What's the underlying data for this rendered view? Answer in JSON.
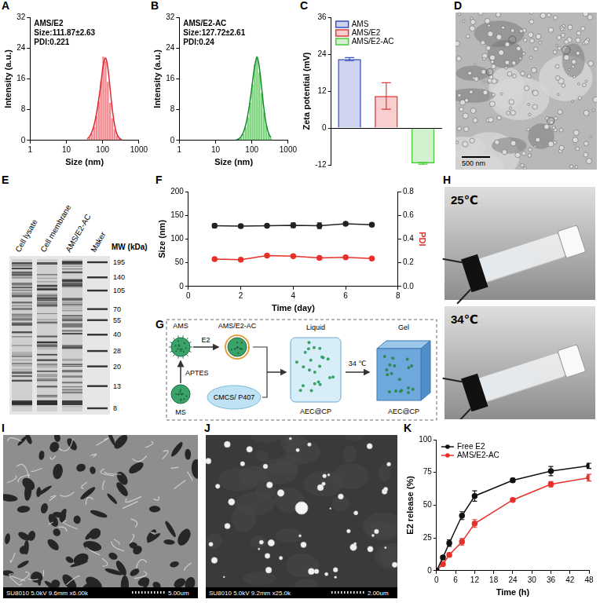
{
  "chart_data": [
    {
      "panel": "A",
      "type": "bar",
      "annotations": [
        "AMS/E2",
        "Size:111.87±2.63",
        "PDI:0.221"
      ],
      "x_label": "Size (nm)",
      "y_label": "Intensity (a.u.)",
      "log": "x",
      "grid": false,
      "xlim": [
        1,
        1000
      ],
      "xticks": [
        1,
        10,
        100,
        1000
      ],
      "ylim": [
        0,
        32
      ],
      "yticks": [
        0,
        8,
        16,
        24,
        32
      ],
      "x": [
        37.8,
        43.7,
        50.5,
        58.4,
        67.5,
        78.0,
        90.2,
        104.3,
        120.6,
        139.4,
        161.2,
        186.4,
        215.4,
        249.1,
        288.0,
        333.0
      ],
      "series": [
        {
          "type": "bar",
          "color": "#f28b92",
          "values": [
            0.3,
            0.8,
            1.8,
            3.6,
            6.3,
            10.2,
            15.4,
            21.8,
            20.6,
            15.2,
            9.8,
            5.7,
            2.9,
            1.3,
            0.5,
            0.2
          ]
        },
        {
          "type": "line",
          "color": "#e3262f",
          "values": [
            0.4,
            1.0,
            2.2,
            4.1,
            6.9,
            10.6,
            15.0,
            19.6,
            21.4,
            18.8,
            13.3,
            7.8,
            3.8,
            1.6,
            0.6,
            0.2
          ]
        }
      ]
    },
    {
      "panel": "B",
      "type": "bar",
      "annotations": [
        "AMS/E2-AC",
        "Size:127.72±2.61",
        "PDI:0.24"
      ],
      "x_label": "Size (nm)",
      "y_label": "Intensity (a.u.)",
      "log": "x",
      "grid": false,
      "xlim": [
        1,
        1000
      ],
      "xticks": [
        1,
        10,
        100,
        1000
      ],
      "ylim": [
        0,
        32
      ],
      "yticks": [
        0,
        8,
        16,
        24,
        32
      ],
      "x": [
        37.8,
        43.7,
        50.5,
        58.4,
        67.5,
        78.0,
        90.2,
        104.3,
        120.6,
        139.4,
        161.2,
        186.4,
        215.4,
        249.1,
        288.0,
        333.0
      ],
      "series": [
        {
          "type": "bar",
          "color": "#7bd67b",
          "values": [
            0.1,
            0.3,
            0.8,
            1.7,
            3.4,
            6.0,
            9.8,
            14.6,
            19.8,
            21.9,
            17.6,
            12.3,
            7.4,
            3.9,
            1.7,
            0.6
          ]
        },
        {
          "type": "line",
          "color": "#138a2b",
          "values": [
            0.2,
            0.4,
            1.0,
            2.1,
            4.0,
            6.8,
            10.6,
            15.2,
            19.4,
            21.6,
            18.9,
            13.6,
            8.2,
            4.2,
            1.9,
            0.7
          ]
        }
      ]
    },
    {
      "panel": "C",
      "type": "bar",
      "y_label": "Zeta potential (mV)",
      "grid": false,
      "legend": "upper left",
      "tick_labels": "y",
      "categories": [
        null,
        null,
        null
      ],
      "ylim": [
        -12,
        36
      ],
      "yticks": [
        -12,
        0,
        12,
        24,
        36
      ],
      "series": [
        {
          "name": "AMS",
          "color": "#3d4fc4",
          "values": [
            22.4,
            null,
            null
          ],
          "errors": [
            0.5,
            null,
            null
          ]
        },
        {
          "name": "AMS/E2",
          "color": "#e23a3a",
          "values": [
            null,
            10.4,
            null
          ],
          "errors": [
            null,
            4.3,
            null
          ]
        },
        {
          "name": "AMS/E2-AC",
          "color": "#4cc93c",
          "values": [
            null,
            null,
            -11.5
          ],
          "errors": [
            null,
            null,
            0.3
          ]
        }
      ]
    },
    {
      "panel": "F",
      "type": "line",
      "x_label": "Time (day)",
      "y_label": "Size (nm)",
      "y2_label": "PDI",
      "grid": false,
      "xlim": [
        0,
        8
      ],
      "xticks": [
        0,
        2,
        4,
        6,
        8
      ],
      "ylim": [
        0,
        200
      ],
      "yticks": [
        0,
        50,
        100,
        150,
        200
      ],
      "y2lim": [
        0,
        0.8
      ],
      "y2ticks": [
        {
          "value": 0,
          "label": "0.0"
        },
        0.2,
        0.4,
        0.6,
        0.8
      ],
      "x": [
        1,
        2,
        3,
        4,
        5,
        6,
        7
      ],
      "series": [
        {
          "color": "#222222",
          "marker": "circle",
          "values": [
            128,
            127,
            128,
            129,
            128,
            132,
            130
          ],
          "errors": [
            4,
            3,
            3,
            5,
            6,
            3,
            3
          ]
        },
        {
          "axis": "y2",
          "color": "#e8302a",
          "marker": "circle",
          "values": [
            0.23,
            0.226,
            0.26,
            0.255,
            0.24,
            0.245,
            0.235
          ]
        }
      ]
    },
    {
      "panel": "K",
      "type": "line",
      "x_label": "Time (h)",
      "y_label": "E2 release (%)",
      "grid": false,
      "legend": "upper left",
      "xlim": [
        0,
        48
      ],
      "xticks": [
        0,
        6,
        12,
        18,
        24,
        30,
        36,
        42,
        48
      ],
      "ylim": [
        0,
        100
      ],
      "yticks": [
        0,
        25,
        50,
        75,
        100
      ],
      "x": [
        0,
        2,
        4,
        8,
        12,
        24,
        36,
        48
      ],
      "series": [
        {
          "name": "Free E2",
          "color": "#111111",
          "marker": "circle",
          "values": [
            0,
            10,
            21,
            42,
            57,
            69,
            76,
            80
          ],
          "errors": [
            0,
            1.5,
            2.5,
            3,
            4,
            1.5,
            3.5,
            2
          ]
        },
        {
          "name": "AMS/E2-AC",
          "color": "#e8302a",
          "marker": "circle",
          "values": [
            0,
            5,
            12,
            22,
            36,
            54,
            66,
            71
          ],
          "errors": [
            0,
            1,
            1.5,
            2.5,
            3,
            1,
            2,
            2.5
          ]
        }
      ]
    }
  ],
  "panels": [
    {
      "panel": "D",
      "type": "tem_image",
      "scale_bar": "500 nm"
    },
    {
      "panel": "E",
      "type": "gel",
      "lanes": [
        "Cell lysate",
        "Cell membrane",
        "AMS/E2-AC",
        "Maker"
      ],
      "mw_label": "MW (kDa)",
      "mw_markers": [
        195,
        140,
        105,
        70,
        55,
        40,
        28,
        20,
        13,
        8
      ]
    },
    {
      "panel": "G",
      "type": "schematic",
      "labels": {
        "ams": "AMS",
        "ams_e2_ac": "AMS/E2-AC",
        "aptes": "APTES",
        "ms": "MS",
        "e2": "E2",
        "polymer": "CMCS/ P407",
        "liquid": "Liquid",
        "gel": "Gel",
        "trigger": "34 ℃",
        "product_liquid": "AEC@CP",
        "product_gel": "AEC@CP"
      }
    },
    {
      "panel": "H",
      "type": "photos",
      "captions": [
        "25℃",
        "34℃"
      ]
    },
    {
      "panel": "I",
      "type": "sem_porous",
      "info": "SU8010 5.0kV 9.6mm x6.00k",
      "scale_bar": "5.00um"
    },
    {
      "panel": "J",
      "type": "sem_particles",
      "info": "SU8010 5.0kV 9.2mm x25.0k",
      "scale_bar": "2.00um"
    }
  ]
}
